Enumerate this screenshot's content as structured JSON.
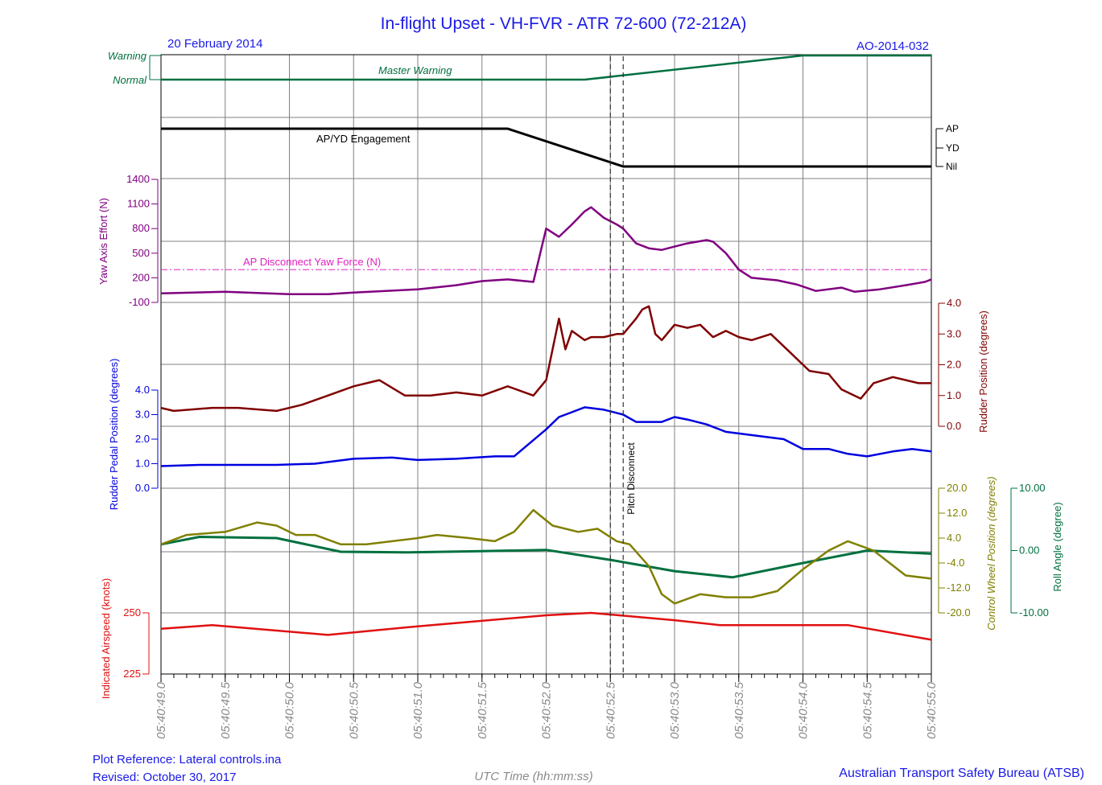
{
  "header": {
    "title": "In-flight Upset - VH-FVR -  ATR 72-600 (72-212A)",
    "date": "20 February 2014",
    "report_id": "AO-2014-032"
  },
  "footer": {
    "plot_reference": "Plot Reference: Lateral controls.ina",
    "revised": "Revised: October 30, 2017",
    "x_axis_label": "UTC Time (hh:mm:ss)",
    "organisation": "Australian Transport Safety Bureau (ATSB)"
  },
  "colors": {
    "title_blue": "#1a1ae6",
    "master_warning": "#007040",
    "ap_yd": "#000000",
    "yaw_effort": "#800080",
    "ap_threshold": "#e020c0",
    "rudder_position": "#800000",
    "rudder_pedal": "#0000e0",
    "control_wheel": "#808000",
    "roll_angle": "#007040",
    "airspeed": "#e01010",
    "grid": "#808080"
  },
  "chart_data": {
    "type": "line",
    "x_axis": {
      "label": "UTC Time (hh:mm:ss)",
      "range": [
        "05:40:49.0",
        "05:40:55.0"
      ],
      "ticks": [
        "05:40:49.0",
        "05:40:49.5",
        "05:40:50.0",
        "05:40:50.5",
        "05:40:51.0",
        "05:40:51.5",
        "05:40:52.0",
        "05:40:52.5",
        "05:40:53.0",
        "05:40:53.5",
        "05:40:54.0",
        "05:40:54.5",
        "05:40:55.0"
      ]
    },
    "event_markers": [
      {
        "label": "Pitch Disconnect",
        "time": "05:40:52.60",
        "style": "dashed"
      },
      {
        "label": "",
        "time": "05:40:52.50",
        "style": "dashed"
      }
    ],
    "panels": [
      {
        "name": "master-warning",
        "y_tick_labels": [
          "Warning",
          "Normal"
        ],
        "series": [
          {
            "name": "Master Warning",
            "points": [
              [
                "05:40:49.0",
                "Normal"
              ],
              [
                "05:40:52.3",
                "Normal"
              ],
              [
                "05:40:54.0",
                "Warning"
              ],
              [
                "05:40:55.0",
                "Warning"
              ]
            ]
          }
        ]
      },
      {
        "name": "ap-yd-engagement",
        "y_tick_labels": [
          "AP",
          "YD",
          "Nil"
        ],
        "series": [
          {
            "name": "AP/YD Engagement",
            "points": [
              [
                "05:40:49.0",
                "AP"
              ],
              [
                "05:40:51.7",
                "AP"
              ],
              [
                "05:40:52.6",
                "Nil"
              ],
              [
                "05:40:55.0",
                "Nil"
              ]
            ]
          }
        ]
      },
      {
        "name": "yaw-axis-effort",
        "ylabel": "Yaw Axis Effort (N)",
        "ylim": [
          -100,
          1400
        ],
        "y_tick_labels": [
          "-100",
          "200",
          "500",
          "800",
          "1100",
          "1400"
        ],
        "threshold": {
          "label": "AP Disconnect Yaw Force (N)",
          "value": 300
        },
        "series": [
          {
            "name": "Yaw Axis Effort",
            "x": [
              "05:40:49.0",
              "05:40:49.5",
              "05:40:50.0",
              "05:40:50.3",
              "05:40:50.5",
              "05:40:51.0",
              "05:40:51.3",
              "05:40:51.5",
              "05:40:51.7",
              "05:40:51.9",
              "05:40:52.0",
              "05:40:52.1",
              "05:40:52.2",
              "05:40:52.3",
              "05:40:52.35",
              "05:40:52.45",
              "05:40:52.55",
              "05:40:52.6",
              "05:40:52.7",
              "05:40:52.8",
              "05:40:52.9",
              "05:40:53.0",
              "05:40:53.1",
              "05:40:53.25",
              "05:40:53.3",
              "05:40:53.4",
              "05:40:53.5",
              "05:40:53.6",
              "05:40:53.8",
              "05:40:53.95",
              "05:40:54.1",
              "05:40:54.3",
              "05:40:54.4",
              "05:40:54.6",
              "05:40:54.8",
              "05:40:54.95",
              "05:40:55.0"
            ],
            "values": [
              10,
              30,
              0,
              0,
              20,
              60,
              110,
              160,
              180,
              150,
              800,
              700,
              850,
              1010,
              1060,
              930,
              850,
              800,
              620,
              560,
              540,
              580,
              620,
              660,
              640,
              500,
              300,
              200,
              170,
              120,
              40,
              80,
              30,
              60,
              110,
              150,
              180
            ]
          }
        ]
      },
      {
        "name": "rudder-position",
        "ylabel": "Rudder Position (degrees)",
        "ylim": [
          0.0,
          4.0
        ],
        "y_tick_labels": [
          "0.0",
          "1.0",
          "2.0",
          "3.0",
          "4.0"
        ],
        "series": [
          {
            "name": "Rudder Position",
            "x": [
              "05:40:49.0",
              "05:40:49.1",
              "05:40:49.4",
              "05:40:49.6",
              "05:40:49.9",
              "05:40:50.1",
              "05:40:50.3",
              "05:40:50.5",
              "05:40:50.7",
              "05:40:50.9",
              "05:40:51.1",
              "05:40:51.3",
              "05:40:51.5",
              "05:40:51.7",
              "05:40:51.9",
              "05:40:52.0",
              "05:40:52.1",
              "05:40:52.15",
              "05:40:52.2",
              "05:40:52.3",
              "05:40:52.35",
              "05:40:52.45",
              "05:40:52.55",
              "05:40:52.6",
              "05:40:52.7",
              "05:40:52.75",
              "05:40:52.8",
              "05:40:52.85",
              "05:40:52.9",
              "05:40:53.0",
              "05:40:53.1",
              "05:40:53.2",
              "05:40:53.3",
              "05:40:53.4",
              "05:40:53.5",
              "05:40:53.6",
              "05:40:53.75",
              "05:40:53.9",
              "05:40:54.05",
              "05:40:54.2",
              "05:40:54.3",
              "05:40:54.45",
              "05:40:54.55",
              "05:40:54.7",
              "05:40:54.9",
              "05:40:55.0"
            ],
            "values": [
              0.6,
              0.5,
              0.6,
              0.6,
              0.5,
              0.7,
              1.0,
              1.3,
              1.5,
              1.0,
              1.0,
              1.1,
              1.0,
              1.3,
              1.0,
              1.5,
              3.5,
              2.5,
              3.1,
              2.8,
              2.9,
              2.9,
              3.0,
              3.0,
              3.5,
              3.8,
              3.9,
              3.0,
              2.8,
              3.3,
              3.2,
              3.3,
              2.9,
              3.1,
              2.9,
              2.8,
              3.0,
              2.4,
              1.8,
              1.7,
              1.2,
              0.9,
              1.4,
              1.6,
              1.4,
              1.4
            ]
          }
        ]
      },
      {
        "name": "rudder-pedal-position",
        "ylabel": "Rudder Pedal Position (degrees)",
        "ylim": [
          0.0,
          4.0
        ],
        "y_tick_labels": [
          "0.0",
          "1.0",
          "2.0",
          "3.0",
          "4.0"
        ],
        "series": [
          {
            "name": "Rudder Pedal Position",
            "x": [
              "05:40:49.0",
              "05:40:49.3",
              "05:40:49.6",
              "05:40:49.9",
              "05:40:50.2",
              "05:40:50.5",
              "05:40:50.8",
              "05:40:51.0",
              "05:40:51.3",
              "05:40:51.6",
              "05:40:51.75",
              "05:40:52.0",
              "05:40:52.1",
              "05:40:52.2",
              "05:40:52.3",
              "05:40:52.45",
              "05:40:52.6",
              "05:40:52.7",
              "05:40:52.9",
              "05:40:53.0",
              "05:40:53.1",
              "05:40:53.25",
              "05:40:53.4",
              "05:40:53.7",
              "05:40:53.85",
              "05:40:54.0",
              "05:40:54.2",
              "05:40:54.35",
              "05:40:54.5",
              "05:40:54.7",
              "05:40:54.85",
              "05:40:55.0"
            ],
            "values": [
              0.9,
              0.95,
              0.95,
              0.95,
              1.0,
              1.2,
              1.25,
              1.15,
              1.2,
              1.3,
              1.3,
              2.4,
              2.9,
              3.1,
              3.3,
              3.2,
              3.0,
              2.7,
              2.7,
              2.9,
              2.8,
              2.6,
              2.3,
              2.1,
              2.0,
              1.6,
              1.6,
              1.4,
              1.3,
              1.5,
              1.6,
              1.5
            ]
          }
        ]
      },
      {
        "name": "control-wheel-and-roll",
        "series": [
          {
            "name": "Control Wheel Position",
            "ylabel": "Control Wheel Position (degrees)",
            "ylim": [
              -20.0,
              20.0
            ],
            "y_tick_labels": [
              "20.0",
              "12.0",
              "4.0",
              "-4.0",
              "-12.0",
              "-20.0"
            ],
            "x": [
              "05:40:49.0",
              "05:40:49.2",
              "05:40:49.5",
              "05:40:49.75",
              "05:40:49.9",
              "05:40:50.05",
              "05:40:50.2",
              "05:40:50.4",
              "05:40:50.6",
              "05:40:50.8",
              "05:40:51.0",
              "05:40:51.15",
              "05:40:51.4",
              "05:40:51.6",
              "05:40:51.75",
              "05:40:51.9",
              "05:40:52.05",
              "05:40:52.25",
              "05:40:52.4",
              "05:40:52.55",
              "05:40:52.65",
              "05:40:52.8",
              "05:40:52.9",
              "05:40:53.0",
              "05:40:53.2",
              "05:40:53.4",
              "05:40:53.6",
              "05:40:53.8",
              "05:40:54.0",
              "05:40:54.2",
              "05:40:54.35",
              "05:40:54.55",
              "05:40:54.8",
              "05:40:55.0"
            ],
            "values": [
              2,
              5,
              6,
              9,
              8,
              5,
              5,
              2,
              2,
              3,
              4,
              5,
              4,
              3,
              6,
              13,
              8,
              6,
              7,
              3,
              2,
              -5,
              -14,
              -17,
              -14,
              -15,
              -15,
              -13,
              -6,
              0,
              3,
              0,
              -8,
              -9
            ]
          },
          {
            "name": "Roll Angle",
            "ylabel": "Roll Angle (degree)",
            "ylim": [
              -10.0,
              10.0
            ],
            "y_tick_labels": [
              "10.00",
              "0.00",
              "-10.00"
            ],
            "x": [
              "05:40:49.0",
              "05:40:49.3",
              "05:40:49.9",
              "05:40:50.4",
              "05:40:50.9",
              "05:40:51.5",
              "05:40:52.0",
              "05:40:52.5",
              "05:40:53.0",
              "05:40:53.45",
              "05:40:54.0",
              "05:40:54.5",
              "05:40:55.0"
            ],
            "values": [
              1,
              2.2,
              2,
              -0.2,
              -0.3,
              -0.1,
              0.1,
              -1.5,
              -3.3,
              -4.3,
              -2,
              0,
              -0.5
            ]
          }
        ]
      },
      {
        "name": "indicated-airspeed",
        "ylabel": "Indicated Airspeed (knots)",
        "ylim": [
          225,
          250
        ],
        "y_tick_labels": [
          "225",
          "250"
        ],
        "series": [
          {
            "name": "Indicated Airspeed",
            "x": [
              "05:40:49.0",
              "05:40:49.4",
              "05:40:50.3",
              "05:40:51.0",
              "05:40:52.0",
              "05:40:52.35",
              "05:40:53.0",
              "05:40:53.35",
              "05:40:54.35",
              "05:40:55.0"
            ],
            "values": [
              243.5,
              245,
              241,
              244.5,
              249,
              250,
              247,
              245,
              245,
              239
            ]
          }
        ]
      }
    ]
  }
}
